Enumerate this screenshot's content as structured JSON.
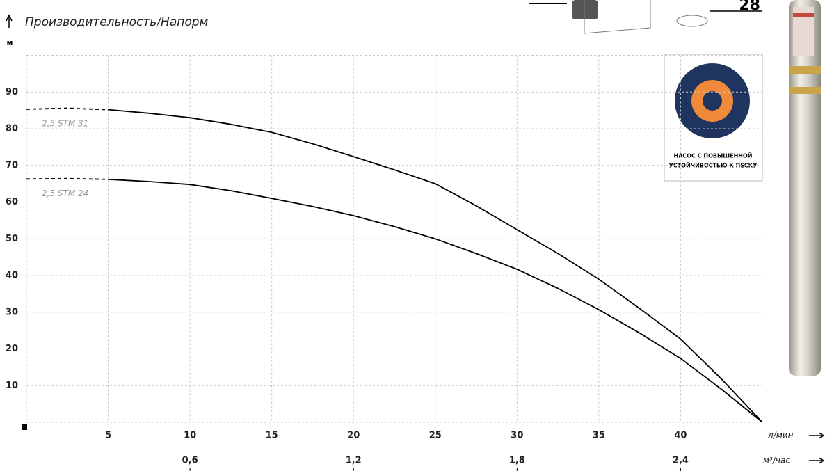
{
  "chart_data": {
    "type": "line",
    "title": "Производительность/Напорм",
    "y_unit": "м",
    "x_unit": "л/мин",
    "x2_unit": "м³/час",
    "badge": [
      "НАСОС С ПОВЫШЕННОЙ",
      "УСТОЙЧИВОСТЬЮ К ПЕСКУ"
    ],
    "icon_label": "28",
    "x": [
      0,
      2.5,
      5,
      7.5,
      10,
      12.5,
      15,
      17.5,
      20,
      22.5,
      25,
      27.5,
      30,
      32.5,
      35,
      37.5,
      40,
      42.5,
      45
    ],
    "xlim": [
      0,
      45
    ],
    "xticks": [
      5,
      10,
      15,
      20,
      25,
      30,
      35,
      40
    ],
    "x2lim": [
      0,
      2.7
    ],
    "x2ticks": [
      {
        "value": 0.6,
        "label": "0,6"
      },
      {
        "value": 1.2,
        "label": "1,2"
      },
      {
        "value": 1.8,
        "label": "1,8"
      },
      {
        "value": 2.4,
        "label": "2,4"
      }
    ],
    "ylim": [
      0,
      100
    ],
    "yticks": [
      10,
      20,
      30,
      40,
      50,
      60,
      70,
      80,
      90
    ],
    "grid": true,
    "series": [
      {
        "name": "2,5 STM 31",
        "color": "#000000",
        "values": [
          85.3,
          85.6,
          85.2,
          84.2,
          83,
          81.2,
          79,
          75.9,
          72.4,
          68.8,
          65,
          59,
          52.5,
          46,
          39,
          31,
          22.7,
          11.8,
          0
        ],
        "dashed": [
          true,
          true,
          false,
          false,
          false,
          false,
          false,
          false,
          false,
          false,
          false,
          false,
          false,
          false,
          false,
          false,
          false,
          false,
          false
        ]
      },
      {
        "name": "2,5 STM 24",
        "color": "#000000",
        "values": [
          66.3,
          66.4,
          66.2,
          65.6,
          64.8,
          63.1,
          61,
          58.8,
          56.3,
          53.3,
          50,
          46,
          41.7,
          36.5,
          30.7,
          24.3,
          17.4,
          9,
          0
        ],
        "dashed": [
          true,
          true,
          false,
          false,
          false,
          false,
          false,
          false,
          false,
          false,
          false,
          false,
          false,
          false,
          false,
          false,
          false,
          false,
          false
        ]
      }
    ]
  }
}
